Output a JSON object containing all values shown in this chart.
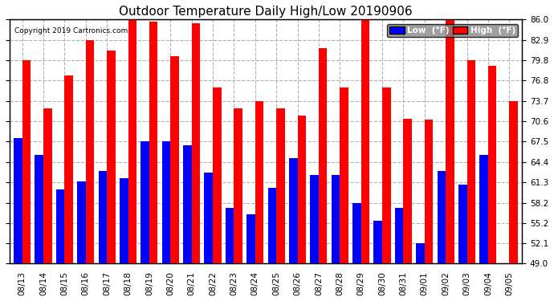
{
  "title": "Outdoor Temperature Daily High/Low 20190906",
  "copyright": "Copyright 2019 Cartronics.com",
  "dates": [
    "08/13",
    "08/14",
    "08/15",
    "08/16",
    "08/17",
    "08/18",
    "08/19",
    "08/20",
    "08/21",
    "08/22",
    "08/23",
    "08/24",
    "08/25",
    "08/26",
    "08/27",
    "08/28",
    "08/29",
    "08/30",
    "08/31",
    "09/01",
    "09/02",
    "09/03",
    "09/04",
    "09/05"
  ],
  "highs": [
    79.8,
    72.5,
    77.5,
    82.9,
    81.3,
    86.0,
    85.7,
    80.5,
    85.5,
    75.7,
    72.5,
    73.7,
    72.5,
    71.5,
    81.7,
    75.7,
    86.0,
    75.7,
    71.0,
    70.8,
    86.0,
    79.8,
    79.0,
    73.7
  ],
  "lows": [
    68.0,
    65.5,
    60.3,
    61.5,
    63.0,
    62.0,
    67.5,
    67.5,
    67.0,
    62.8,
    57.5,
    56.5,
    60.5,
    65.0,
    62.5,
    62.5,
    58.2,
    55.5,
    57.5,
    52.1,
    63.0,
    61.0,
    65.5,
    49.0
  ],
  "ymin": 49.0,
  "ymax": 86.0,
  "yticks": [
    49.0,
    52.1,
    55.2,
    58.2,
    61.3,
    64.4,
    67.5,
    70.6,
    73.7,
    76.8,
    79.8,
    82.9,
    86.0
  ],
  "high_color": "#ff0000",
  "low_color": "#0000ff",
  "bg_color": "#ffffff",
  "plot_bg_color": "#ffffff",
  "grid_color": "#b0b0b0",
  "title_fontsize": 11,
  "tick_fontsize": 7.5,
  "legend_high_label": "High  (°F)",
  "legend_low_label": "Low  (°F)"
}
